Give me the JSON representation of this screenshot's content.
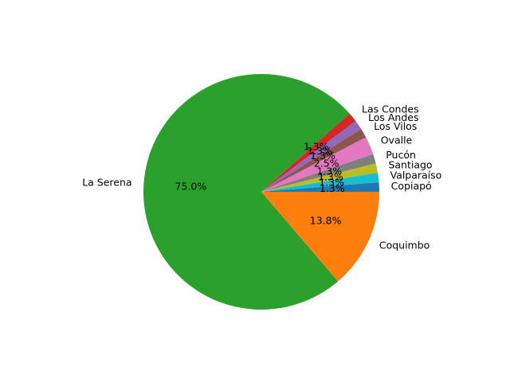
{
  "chart_data": {
    "type": "pie",
    "labels": [
      "Copiapó",
      "Valparaíso",
      "Santiago",
      "Pucón",
      "Ovalle",
      "Los Vilos",
      "Los Andes",
      "Las Condes",
      "La Serena",
      "Coquimbo"
    ],
    "values": [
      1.3,
      1.3,
      1.3,
      1.3,
      2.5,
      1.3,
      1.3,
      1.3,
      75.0,
      13.8
    ],
    "pct_labels": [
      "1.3%",
      "1.3%",
      "1.3%",
      "1.3%",
      "2.5%",
      "1.3%",
      "1.3%",
      "1.3%",
      "75.0%",
      "13.8%"
    ],
    "colors": [
      "#1f77b4",
      "#17becf",
      "#bcbd22",
      "#7f7f7f",
      "#e377c2",
      "#8c564b",
      "#9467bd",
      "#d62728",
      "#2ca02c",
      "#ff7f0e"
    ],
    "start_angle_deg": 0,
    "direction": "counterclockwise"
  }
}
